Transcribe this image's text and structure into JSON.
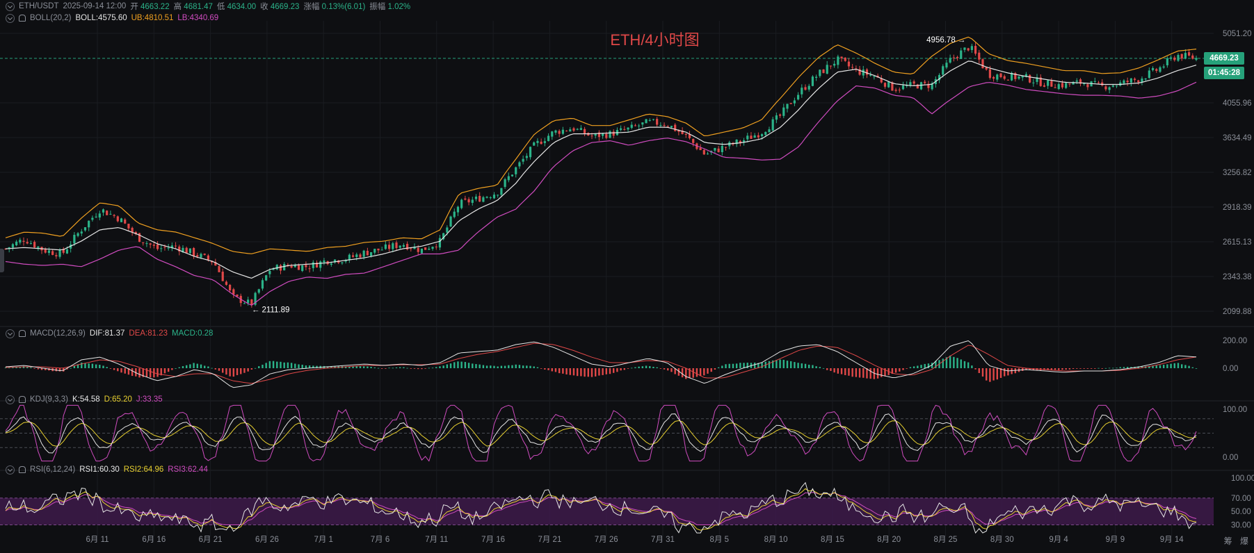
{
  "header": {
    "symbol": "ETH/USDT",
    "datetime": "2025-09-14 12:00",
    "open_label": "开",
    "open": "4663.22",
    "high_label": "高",
    "high": "4681.47",
    "low_label": "低",
    "low": "4634.00",
    "close_label": "收",
    "close": "4669.23",
    "change_label": "涨幅",
    "change": "0.13%(6.01)",
    "amp_label": "振幅",
    "amp": "1.02%"
  },
  "boll": {
    "name": "BOLL(20,2)",
    "mid": "BOLL:4575.60",
    "ub": "UB:4810.51",
    "lb": "LB:4340.69"
  },
  "macd": {
    "name": "MACD(12,26,9)",
    "dif": "DIF:81.37",
    "dea": "DEA:81.23",
    "macd": "MACD:0.28"
  },
  "kdj": {
    "name": "KDJ(9,3,3)",
    "k": "K:54.58",
    "d": "D:65.20",
    "j": "J:33.35"
  },
  "rsi": {
    "name": "RSI(6,12,24)",
    "rsi1": "RSI1:60.30",
    "rsi2": "RSI2:64.96",
    "rsi3": "RSI3:62.44"
  },
  "title": "ETH/4小时图",
  "annotations": {
    "high": "4956.78",
    "low": "2111.89"
  },
  "badges": {
    "price": "4669.23",
    "countdown": "01:45:28"
  },
  "bottom_right": {
    "a": "筹",
    "b": "爆"
  },
  "colors": {
    "up": "#2bb389",
    "down": "#e04848",
    "mid": "#e6e6e6",
    "ub": "#f0a020",
    "lb": "#d04cc0",
    "dif": "#e6e6e6",
    "dea": "#e04848",
    "k": "#e6e6e6",
    "d": "#e8d030",
    "j": "#d04cc0",
    "rsi_band": "#3d1a4a"
  },
  "chart_data": [
    {
      "type": "candlestick",
      "pane": "price",
      "y_ticks": [
        "5051.20",
        "4669.23",
        "4055.96",
        "3634.49",
        "3256.82",
        "2918.39",
        "2615.13",
        "2343.38",
        "2099.88"
      ],
      "y_tick_values": [
        5051.2,
        4669.23,
        4055.96,
        3634.49,
        3256.82,
        2918.39,
        2615.13,
        2343.38,
        2099.88
      ],
      "x_ticks": [
        "6月 11",
        "6月 16",
        "6月 21",
        "6月 26",
        "7月 1",
        "7月 6",
        "7月 11",
        "7月 16",
        "7月 21",
        "7月 26",
        "7月 31",
        "8月 5",
        "8月 10",
        "8月 15",
        "8月 20",
        "8月 25",
        "8月 30",
        "9月 4",
        "9月 9",
        "9月 14"
      ],
      "close_path": [
        2560,
        2640,
        2550,
        2520,
        2720,
        2900,
        2820,
        2650,
        2560,
        2580,
        2520,
        2460,
        2200,
        2150,
        2400,
        2430,
        2420,
        2470,
        2480,
        2530,
        2560,
        2600,
        2550,
        2620,
        2950,
        3000,
        3060,
        3300,
        3550,
        3700,
        3750,
        3650,
        3680,
        3740,
        3820,
        3800,
        3650,
        3450,
        3530,
        3600,
        3700,
        3900,
        4200,
        4450,
        4650,
        4500,
        4420,
        4250,
        4300,
        4300,
        4650,
        4850,
        4450,
        4420,
        4400,
        4320,
        4300,
        4340,
        4280,
        4320,
        4390,
        4520,
        4720,
        4669
      ],
      "boll_mid": [
        2560,
        2570,
        2560,
        2550,
        2620,
        2720,
        2740,
        2680,
        2600,
        2560,
        2500,
        2460,
        2380,
        2330,
        2400,
        2430,
        2440,
        2450,
        2470,
        2490,
        2520,
        2560,
        2580,
        2620,
        2800,
        2900,
        2980,
        3150,
        3380,
        3580,
        3680,
        3680,
        3690,
        3700,
        3760,
        3760,
        3700,
        3580,
        3560,
        3580,
        3620,
        3760,
        3980,
        4250,
        4480,
        4520,
        4430,
        4320,
        4290,
        4310,
        4500,
        4640,
        4540,
        4470,
        4420,
        4380,
        4340,
        4330,
        4310,
        4310,
        4330,
        4400,
        4500,
        4576
      ],
      "boll_ub": [
        2650,
        2700,
        2690,
        2660,
        2820,
        2960,
        2930,
        2780,
        2720,
        2700,
        2650,
        2600,
        2540,
        2520,
        2560,
        2550,
        2540,
        2570,
        2580,
        2610,
        2620,
        2650,
        2640,
        2720,
        3050,
        3100,
        3130,
        3400,
        3680,
        3840,
        3870,
        3780,
        3780,
        3850,
        3920,
        3890,
        3810,
        3650,
        3700,
        3750,
        3850,
        4120,
        4420,
        4680,
        4880,
        4750,
        4600,
        4480,
        4450,
        4700,
        4900,
        5000,
        4740,
        4640,
        4600,
        4550,
        4500,
        4500,
        4460,
        4470,
        4540,
        4650,
        4780,
        4811
      ],
      "boll_lb": [
        2460,
        2440,
        2430,
        2440,
        2420,
        2480,
        2550,
        2580,
        2480,
        2420,
        2350,
        2320,
        2220,
        2140,
        2240,
        2310,
        2340,
        2330,
        2360,
        2370,
        2420,
        2470,
        2520,
        2520,
        2550,
        2700,
        2830,
        2900,
        3080,
        3320,
        3490,
        3580,
        3600,
        3550,
        3600,
        3630,
        3590,
        3510,
        3420,
        3410,
        3390,
        3400,
        3540,
        3820,
        4080,
        4290,
        4260,
        4160,
        4130,
        3920,
        4100,
        4280,
        4340,
        4300,
        4240,
        4210,
        4180,
        4160,
        4160,
        4150,
        4120,
        4150,
        4220,
        4341
      ]
    },
    {
      "type": "bar",
      "pane": "macd",
      "y_ticks": [
        "200.00",
        "0.00"
      ],
      "y_tick_values": [
        200,
        0
      ],
      "dif": [
        10,
        20,
        0,
        -20,
        60,
        80,
        30,
        -40,
        -90,
        -60,
        -10,
        -40,
        -140,
        -120,
        -40,
        -10,
        0,
        10,
        20,
        30,
        20,
        30,
        20,
        40,
        110,
        120,
        130,
        170,
        190,
        150,
        90,
        30,
        10,
        40,
        70,
        40,
        -60,
        -110,
        -50,
        0,
        40,
        120,
        160,
        170,
        120,
        40,
        -40,
        -70,
        -40,
        20,
        160,
        200,
        20,
        -20,
        -10,
        -20,
        -30,
        -20,
        -20,
        -10,
        10,
        40,
        90,
        81
      ],
      "dea": [
        5,
        10,
        10,
        0,
        30,
        60,
        50,
        10,
        -40,
        -60,
        -40,
        -40,
        -90,
        -110,
        -80,
        -40,
        -15,
        0,
        10,
        20,
        20,
        25,
        25,
        30,
        70,
        100,
        120,
        150,
        180,
        170,
        130,
        80,
        40,
        40,
        55,
        50,
        0,
        -70,
        -70,
        -30,
        10,
        70,
        130,
        160,
        150,
        90,
        20,
        -40,
        -50,
        -10,
        90,
        170,
        100,
        20,
        0,
        -10,
        -20,
        -20,
        -20,
        -15,
        0,
        25,
        60,
        81
      ]
    },
    {
      "type": "line",
      "pane": "kdj",
      "y_ticks": [
        "100.00",
        "0.00"
      ],
      "y_tick_values": [
        100,
        0
      ],
      "guides": [
        80,
        50,
        20
      ]
    },
    {
      "type": "line",
      "pane": "rsi",
      "y_ticks": [
        "100.00",
        "70.00",
        "50.00",
        "30.00"
      ],
      "y_tick_values": [
        100,
        70,
        50,
        30
      ],
      "band": [
        30,
        70
      ]
    }
  ]
}
